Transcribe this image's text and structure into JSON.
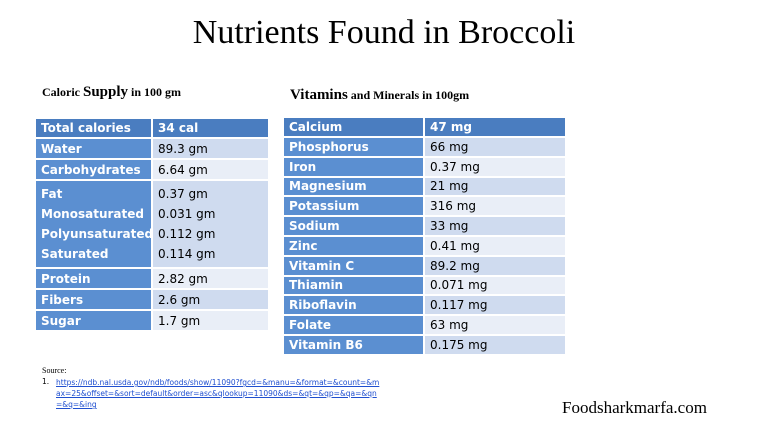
{
  "title": "Nutrients Found in Broccoli",
  "caloric": {
    "heading_a": "Caloric ",
    "heading_b": "Supply",
    "heading_c": " in 100 gm",
    "header": [
      "Total calories",
      "34 cal"
    ],
    "rows": [
      [
        "Water",
        "89.3 gm"
      ],
      [
        "Carbohydrates",
        "6.64 gm"
      ],
      [
        [
          "Fat",
          "0.37 gm"
        ],
        [
          "Monosaturated",
          "0.031 gm"
        ],
        [
          "Polyunsaturated",
          "0.112 gm"
        ],
        [
          "Saturated",
          "0.114 gm"
        ]
      ],
      [
        "Protein",
        "2.82 gm"
      ],
      [
        "Fibers",
        "2.6 gm"
      ],
      [
        "Sugar",
        "1.7 gm"
      ]
    ]
  },
  "vitamins": {
    "heading_a": "Vitamins",
    "heading_b": " and Minerals in 100gm",
    "header": [
      "Calcium",
      "47 mg"
    ],
    "rows": [
      [
        "Phosphorus",
        "66 mg"
      ],
      [
        "Iron",
        "0.37 mg"
      ],
      [
        "Magnesium",
        "21 mg"
      ],
      [
        "Potassium",
        "316 mg"
      ],
      [
        "Sodium",
        "33 mg"
      ],
      [
        "Zinc",
        "0.41 mg"
      ],
      [
        "Vitamin C",
        "89.2 mg"
      ],
      [
        "Thiamin",
        "0.071 mg"
      ],
      [
        "Riboflavin",
        "0.117 mg"
      ],
      [
        "Folate",
        "63 mg"
      ],
      [
        "Vitamin B6",
        "0.175 mg"
      ]
    ]
  },
  "source": {
    "label": "Source:",
    "number": "1.",
    "url": "https://ndb.nal.usda.gov/ndb/foods/show/11090?fgcd=&manu=&format=&count=&max=25&offset=&sort=default&order=asc&qlookup=11090&ds=&qt=&qp=&qa=&qn=&q=&ing"
  },
  "footer": "Foodsharkmarfa.com"
}
